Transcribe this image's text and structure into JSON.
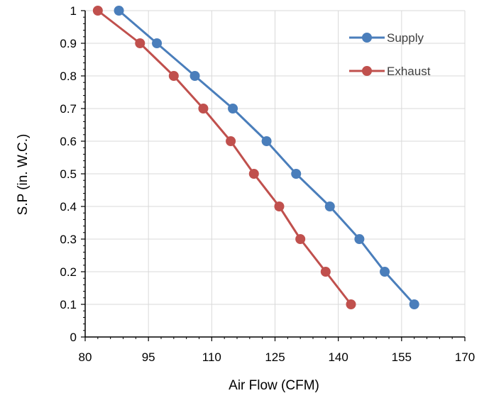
{
  "chart_data": {
    "type": "line",
    "title": "",
    "xlabel": "Air Flow (CFM)",
    "ylabel": "S.P (in. W.C.)",
    "xlim": [
      80,
      170
    ],
    "ylim": [
      0,
      1
    ],
    "x_ticks": [
      80,
      95,
      110,
      125,
      140,
      155,
      170
    ],
    "y_ticks": [
      0,
      0.1,
      0.2,
      0.3,
      0.4,
      0.5,
      0.6,
      0.7,
      0.8,
      0.9,
      1
    ],
    "x_tick_labels": [
      "80",
      "95",
      "110",
      "125",
      "140",
      "155",
      "170"
    ],
    "y_tick_labels": [
      "0",
      "0.1",
      "0.2",
      "0.3",
      "0.4",
      "0.5",
      "0.6",
      "0.7",
      "0.8",
      "0.9",
      "1"
    ],
    "grid": true,
    "legend_position": "top-right",
    "series": [
      {
        "name": "Supply",
        "color": "#4a7ebb",
        "marker": "circle",
        "x": [
          88,
          97,
          106,
          115,
          123,
          130,
          138,
          145,
          151,
          158
        ],
        "y": [
          1,
          0.9,
          0.8,
          0.7,
          0.6,
          0.5,
          0.4,
          0.3,
          0.2,
          0.1
        ]
      },
      {
        "name": "Exhaust",
        "color": "#c0504d",
        "marker": "circle",
        "x": [
          83,
          93,
          101,
          108,
          114.5,
          120,
          126,
          131,
          137,
          143
        ],
        "y": [
          1,
          0.9,
          0.8,
          0.7,
          0.6,
          0.5,
          0.4,
          0.3,
          0.2,
          0.1
        ]
      }
    ]
  }
}
